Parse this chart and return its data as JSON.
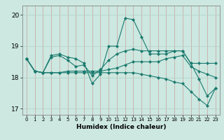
{
  "title": "",
  "xlabel": "Humidex (Indice chaleur)",
  "background_color": "#cce8e0",
  "line_color": "#1a7a6e",
  "xlim": [
    -0.5,
    23.5
  ],
  "ylim": [
    16.8,
    20.3
  ],
  "yticks": [
    17,
    18,
    19,
    20
  ],
  "xticks": [
    0,
    1,
    2,
    3,
    4,
    5,
    6,
    7,
    8,
    9,
    10,
    11,
    12,
    13,
    14,
    15,
    16,
    17,
    18,
    19,
    20,
    21,
    22,
    23
  ],
  "series": [
    [
      18.6,
      18.2,
      18.15,
      18.7,
      18.75,
      18.65,
      18.6,
      18.45,
      17.8,
      18.1,
      19.0,
      19.0,
      19.9,
      19.85,
      19.3,
      18.75,
      18.75,
      18.75,
      18.85,
      18.85,
      18.45,
      17.95,
      17.4,
      17.65
    ],
    [
      18.6,
      18.2,
      18.15,
      18.65,
      18.7,
      18.55,
      18.35,
      18.4,
      18.05,
      18.25,
      18.55,
      18.75,
      18.85,
      18.9,
      18.85,
      18.85,
      18.85,
      18.85,
      18.85,
      18.85,
      18.45,
      18.45,
      18.45,
      18.45
    ],
    [
      18.6,
      18.2,
      18.15,
      18.15,
      18.15,
      18.2,
      18.2,
      18.2,
      18.2,
      18.2,
      18.25,
      18.3,
      18.4,
      18.5,
      18.5,
      18.5,
      18.5,
      18.6,
      18.65,
      18.7,
      18.35,
      18.2,
      18.1,
      18.0
    ],
    [
      18.6,
      18.2,
      18.15,
      18.15,
      18.15,
      18.15,
      18.15,
      18.15,
      18.15,
      18.15,
      18.15,
      18.15,
      18.15,
      18.15,
      18.1,
      18.05,
      18.0,
      17.95,
      17.85,
      17.8,
      17.55,
      17.3,
      17.1,
      17.65
    ]
  ]
}
